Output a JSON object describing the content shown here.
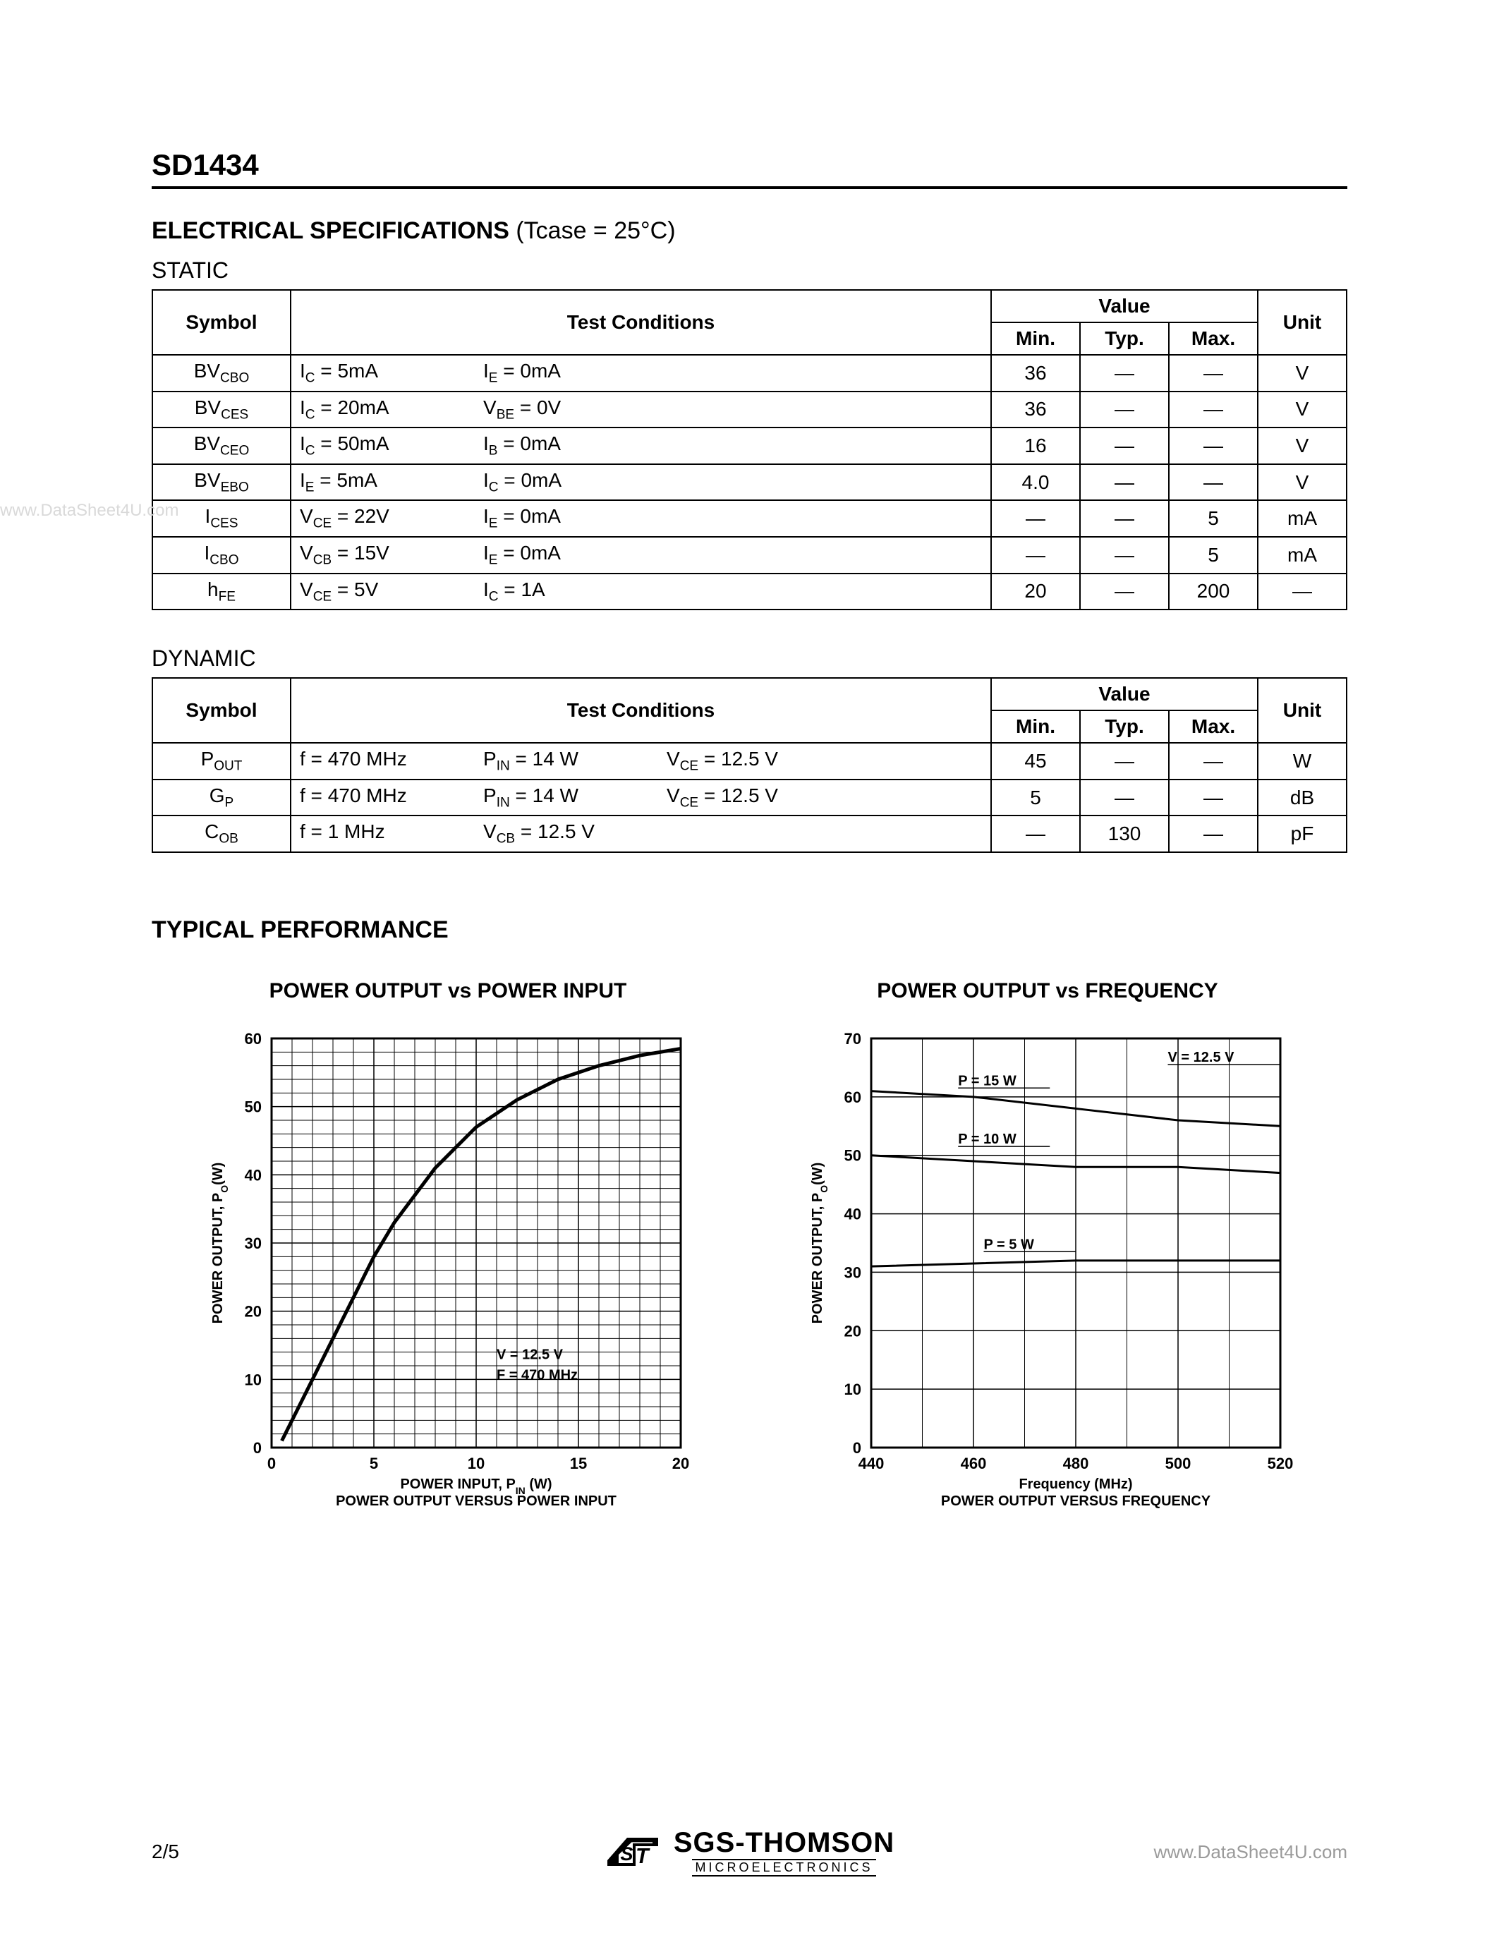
{
  "part_number": "SD1434",
  "elec_spec_heading": "ELECTRICAL SPECIFICATIONS",
  "elec_spec_condition": "(Tcase = 25°C)",
  "static_label": "STATIC",
  "dynamic_label": "DYNAMIC",
  "headers": {
    "symbol": "Symbol",
    "test_conditions": "Test Conditions",
    "value": "Value",
    "min": "Min.",
    "typ": "Typ.",
    "max": "Max.",
    "unit": "Unit"
  },
  "static_rows": [
    {
      "symbol_html": "BV<sub>CBO</sub>",
      "c1_html": "I<sub>C</sub> = 5mA",
      "c2_html": "I<sub>E</sub> = 0mA",
      "c3_html": "",
      "min": "36",
      "typ": "—",
      "max": "—",
      "unit": "V"
    },
    {
      "symbol_html": "BV<sub>CES</sub>",
      "c1_html": "I<sub>C</sub> = 20mA",
      "c2_html": "V<sub>BE</sub> = 0V",
      "c3_html": "",
      "min": "36",
      "typ": "—",
      "max": "—",
      "unit": "V"
    },
    {
      "symbol_html": "BV<sub>CEO</sub>",
      "c1_html": "I<sub>C</sub> = 50mA",
      "c2_html": "I<sub>B</sub> = 0mA",
      "c3_html": "",
      "min": "16",
      "typ": "—",
      "max": "—",
      "unit": "V"
    },
    {
      "symbol_html": "BV<sub>EBO</sub>",
      "c1_html": "I<sub>E</sub> = 5mA",
      "c2_html": "I<sub>C</sub> = 0mA",
      "c3_html": "",
      "min": "4.0",
      "typ": "—",
      "max": "—",
      "unit": "V"
    },
    {
      "symbol_html": "I<sub>CES</sub>",
      "c1_html": "V<sub>CE</sub> = 22V",
      "c2_html": "I<sub>E</sub> = 0mA",
      "c3_html": "",
      "min": "—",
      "typ": "—",
      "max": "5",
      "unit": "mA"
    },
    {
      "symbol_html": "I<sub>CBO</sub>",
      "c1_html": "V<sub>CB</sub> = 15V",
      "c2_html": "I<sub>E</sub> = 0mA",
      "c3_html": "",
      "min": "—",
      "typ": "—",
      "max": "5",
      "unit": "mA"
    },
    {
      "symbol_html": "h<sub>FE</sub>",
      "c1_html": "V<sub>CE</sub> = 5V",
      "c2_html": "I<sub>C</sub> = 1A",
      "c3_html": "",
      "min": "20",
      "typ": "—",
      "max": "200",
      "unit": "—"
    }
  ],
  "dynamic_rows": [
    {
      "symbol_html": "P<sub>OUT</sub>",
      "c1_html": "f = 470 MHz",
      "c2_html": "P<sub>IN</sub> = 14 W",
      "c3_html": "V<sub>CE</sub> = 12.5 V",
      "min": "45",
      "typ": "—",
      "max": "—",
      "unit": "W"
    },
    {
      "symbol_html": "G<sub>P</sub>",
      "c1_html": "f = 470 MHz",
      "c2_html": "P<sub>IN</sub> = 14 W",
      "c3_html": "V<sub>CE</sub> = 12.5 V",
      "min": "5",
      "typ": "—",
      "max": "—",
      "unit": "dB"
    },
    {
      "symbol_html": "C<sub>OB</sub>",
      "c1_html": "f = 1 MHz",
      "c2_html": "V<sub>CB</sub> = 12.5 V",
      "c3_html": "",
      "min": "—",
      "typ": "130",
      "max": "—",
      "unit": "pF"
    }
  ],
  "typical_performance": "TYPICAL PERFORMANCE",
  "chart1": {
    "title": "POWER OUTPUT vs POWER INPUT",
    "type": "line",
    "x_label": "POWER INPUT, P",
    "x_label_sub": "IN",
    "x_label_suffix": " (W)",
    "x_caption": "POWER OUTPUT VERSUS POWER INPUT",
    "y_label": "POWER OUTPUT, P",
    "y_label_sub": "O",
    "y_label_suffix": "(W)",
    "xlim": [
      0,
      20
    ],
    "ylim": [
      0,
      60
    ],
    "xticks": [
      0,
      5,
      10,
      15,
      20
    ],
    "yticks": [
      0,
      10,
      20,
      30,
      40,
      50,
      60
    ],
    "grid_color": "#000000",
    "line_color": "#000000",
    "line_width": 5,
    "annotation1_html": "V<sub>CC</sub> = 12.5 V",
    "annotation2_html": "F<sub>0</sub>   = 470 MHz",
    "series": {
      "x": [
        0.5,
        1,
        2,
        3,
        4,
        5,
        6,
        8,
        10,
        12,
        14,
        16,
        18,
        20
      ],
      "y": [
        1,
        4,
        10,
        16,
        22,
        28,
        33,
        41,
        47,
        51,
        54,
        56,
        57.5,
        58.5
      ]
    },
    "background_color": "#ffffff",
    "font_size_axis": 22,
    "font_size_annot": 20
  },
  "chart2": {
    "title": "POWER OUTPUT vs FREQUENCY",
    "type": "line",
    "x_label": "Frequency (MHz)",
    "x_caption": "POWER OUTPUT VERSUS FREQUENCY",
    "y_label": "POWER OUTPUT, P",
    "y_label_sub": "O",
    "y_label_suffix": "(W)",
    "xlim": [
      440,
      520
    ],
    "ylim": [
      0,
      70
    ],
    "xticks": [
      440,
      460,
      480,
      500,
      520
    ],
    "yticks": [
      0,
      10,
      20,
      30,
      40,
      50,
      60,
      70
    ],
    "grid_color": "#000000",
    "line_color": "#000000",
    "line_width": 3,
    "annotation_top_html": "V<sub>CC</sub> = 12.5 V",
    "annotation_s1_html": "P<sub>IN</sub>  = 15 W",
    "annotation_s2_html": "P<sub>IN</sub>  = 10 W",
    "annotation_s3_html": "P<sub>IN</sub>  = 5 W",
    "series": [
      {
        "x": [
          440,
          460,
          480,
          500,
          520
        ],
        "y": [
          61,
          60,
          58,
          56,
          55
        ]
      },
      {
        "x": [
          440,
          460,
          480,
          500,
          520
        ],
        "y": [
          50,
          49,
          48,
          48,
          47
        ]
      },
      {
        "x": [
          440,
          460,
          480,
          500,
          520
        ],
        "y": [
          31,
          31.5,
          32,
          32,
          32
        ]
      }
    ],
    "background_color": "#ffffff",
    "font_size_axis": 22,
    "font_size_annot": 20
  },
  "footer": {
    "page": "2/5",
    "company_main": "SGS-THOMSON",
    "company_sub": "MICROELECTRONICS",
    "watermark_right": "www.DataSheet4U.com",
    "watermark_left": "www.DataSheet4U.com"
  }
}
